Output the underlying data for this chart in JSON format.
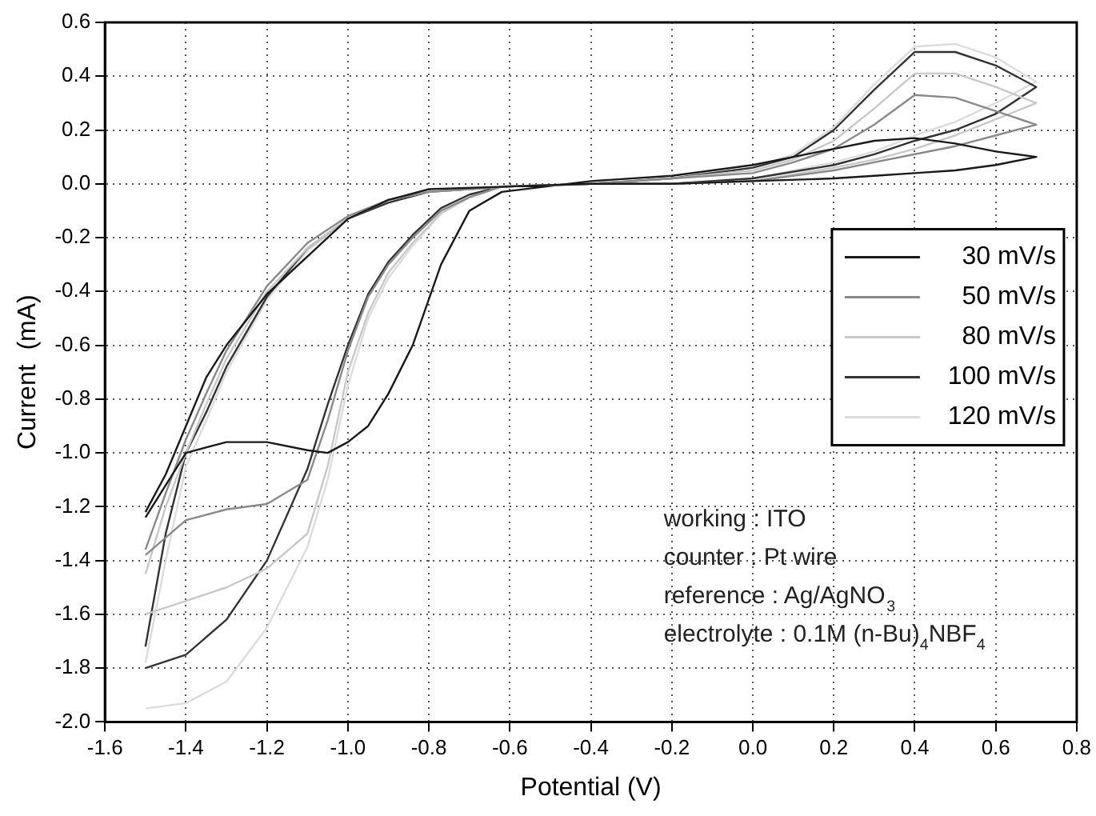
{
  "chart_data": {
    "type": "line",
    "xlabel": "Potential (V)",
    "ylabel": "Current  (mA)",
    "xlim": [
      -1.6,
      0.8
    ],
    "ylim": [
      -2.0,
      0.6
    ],
    "xticks": [
      -1.6,
      -1.4,
      -1.2,
      {
        "value": -1.0,
        "label": "-1.0"
      },
      -0.8,
      -0.6,
      -0.4,
      -0.2,
      {
        "value": 0,
        "label": "0.0"
      },
      0.2,
      0.4,
      0.6,
      0.8
    ],
    "yticks": [
      {
        "value": -2.0,
        "label": "-2.0"
      },
      -1.8,
      -1.6,
      -1.4,
      -1.2,
      {
        "value": -1.0,
        "label": "-1.0"
      },
      -0.8,
      -0.6,
      -0.4,
      -0.2,
      {
        "value": 0,
        "label": "0.0"
      },
      0.2,
      0.4,
      0.6
    ],
    "grid": true,
    "legend": "right",
    "marker": "none",
    "line_style": "solid",
    "annotations": [
      "working : ITO",
      "counter : Pt wire",
      "reference : Ag/AgNO$_{3}$",
      "electrolyte : 0.1M (n-Bu)$_{4}$NBF$_{4}$"
    ],
    "series": [
      {
        "name": "30 mV/s",
        "color": "#1a1a1a",
        "x": [
          -1.5,
          -1.4,
          -1.3,
          -1.2,
          -1.1,
          -1.05,
          -1.0,
          -0.95,
          -0.9,
          -0.84,
          -0.77,
          -0.7,
          -0.62,
          -0.4,
          -0.2,
          0,
          0.1,
          0.2,
          0.3,
          0.4,
          0.5,
          0.6,
          0.7,
          0.6,
          0.5,
          0.4,
          0.3,
          0.2,
          0,
          -0.2,
          -0.4,
          -0.6,
          -0.8,
          -0.9,
          -1.0,
          -1.1,
          -1.2,
          -1.3,
          -1.35,
          -1.4,
          -1.45,
          -1.5
        ],
        "values": [
          -1.24,
          -1.0,
          -0.96,
          -0.96,
          -0.99,
          -1.0,
          -0.96,
          -0.9,
          -0.78,
          -0.6,
          -0.3,
          -0.1,
          -0.03,
          0.01,
          0.03,
          0.07,
          0.1,
          0.13,
          0.16,
          0.17,
          0.15,
          0.12,
          0.1,
          0.07,
          0.05,
          0.04,
          0.03,
          0.02,
          0.01,
          0,
          0,
          -0.01,
          -0.02,
          -0.06,
          -0.13,
          -0.27,
          -0.41,
          -0.6,
          -0.72,
          -0.9,
          -1.08,
          -1.22
        ]
      },
      {
        "name": "50 mV/s",
        "color": "#8a8a8a",
        "x": [
          -1.5,
          -1.4,
          -1.3,
          -1.2,
          -1.1,
          -1.05,
          -1.0,
          -0.95,
          -0.9,
          -0.84,
          -0.77,
          -0.7,
          -0.62,
          -0.4,
          -0.2,
          0,
          0.1,
          0.2,
          0.3,
          0.4,
          0.5,
          0.6,
          0.7,
          0.6,
          0.5,
          0.4,
          0.3,
          0.2,
          0,
          -0.2,
          -0.4,
          -0.6,
          -0.8,
          -0.9,
          -1.0,
          -1.1,
          -1.2,
          -1.3,
          -1.35,
          -1.4,
          -1.45,
          -1.5
        ],
        "values": [
          -1.38,
          -1.25,
          -1.21,
          -1.19,
          -1.1,
          -0.88,
          -0.62,
          -0.42,
          -0.3,
          -0.2,
          -0.1,
          -0.05,
          -0.01,
          0,
          0.02,
          0.04,
          0.08,
          0.13,
          0.22,
          0.33,
          0.32,
          0.27,
          0.22,
          0.18,
          0.14,
          0.11,
          0.08,
          0.05,
          0.01,
          0,
          0,
          -0.01,
          -0.03,
          -0.06,
          -0.12,
          -0.22,
          -0.38,
          -0.62,
          -0.78,
          -0.95,
          -1.15,
          -1.36
        ]
      },
      {
        "name": "80 mV/s",
        "color": "#c8c8c8",
        "x": [
          -1.5,
          -1.4,
          -1.3,
          -1.2,
          -1.1,
          -1.05,
          -1.0,
          -0.95,
          -0.9,
          -0.84,
          -0.77,
          -0.7,
          -0.62,
          -0.4,
          -0.2,
          0,
          0.1,
          0.2,
          0.3,
          0.4,
          0.5,
          0.6,
          0.7,
          0.6,
          0.5,
          0.4,
          0.3,
          0.2,
          0,
          -0.2,
          -0.4,
          -0.6,
          -0.8,
          -0.9,
          -1.0,
          -1.1,
          -1.2,
          -1.3,
          -1.35,
          -1.4,
          -1.45,
          -1.5
        ],
        "values": [
          -1.6,
          -1.55,
          -1.5,
          -1.43,
          -1.3,
          -1.05,
          -0.7,
          -0.48,
          -0.33,
          -0.22,
          -0.11,
          -0.05,
          -0.01,
          0,
          0.02,
          0.05,
          0.09,
          0.16,
          0.28,
          0.41,
          0.41,
          0.36,
          0.3,
          0.24,
          0.18,
          0.13,
          0.09,
          0.06,
          0.01,
          0,
          0,
          -0.01,
          -0.03,
          -0.06,
          -0.13,
          -0.24,
          -0.4,
          -0.65,
          -0.82,
          -1.0,
          -1.2,
          -1.45
        ]
      },
      {
        "name": "100 mV/s",
        "color": "#333333",
        "x": [
          -1.5,
          -1.4,
          -1.3,
          -1.2,
          -1.1,
          -1.05,
          -1.0,
          -0.95,
          -0.9,
          -0.84,
          -0.77,
          -0.7,
          -0.62,
          -0.4,
          -0.2,
          0,
          0.1,
          0.2,
          0.3,
          0.4,
          0.5,
          0.6,
          0.7,
          0.6,
          0.5,
          0.4,
          0.3,
          0.2,
          0,
          -0.2,
          -0.4,
          -0.6,
          -0.8,
          -0.9,
          -1.0,
          -1.1,
          -1.2,
          -1.3,
          -1.35,
          -1.4,
          -1.45,
          -1.5
        ],
        "values": [
          -1.8,
          -1.75,
          -1.62,
          -1.4,
          -1.06,
          -0.82,
          -0.6,
          -0.41,
          -0.29,
          -0.19,
          -0.09,
          -0.04,
          -0.01,
          0,
          0.02,
          0.06,
          0.1,
          0.2,
          0.35,
          0.49,
          0.49,
          0.44,
          0.36,
          0.26,
          0.2,
          0.16,
          0.11,
          0.07,
          0.02,
          0,
          0,
          -0.01,
          -0.03,
          -0.07,
          -0.13,
          -0.24,
          -0.42,
          -0.68,
          -0.85,
          -1.0,
          -1.3,
          -1.72
        ]
      },
      {
        "name": "120 mV/s",
        "color": "#dcdcdc",
        "x": [
          -1.5,
          -1.4,
          -1.3,
          -1.2,
          -1.1,
          -1.05,
          -1.0,
          -0.95,
          -0.9,
          -0.84,
          -0.77,
          -0.7,
          -0.62,
          -0.4,
          -0.2,
          0,
          0.1,
          0.2,
          0.3,
          0.4,
          0.5,
          0.6,
          0.7,
          0.6,
          0.5,
          0.4,
          0.3,
          0.2,
          0,
          -0.2,
          -0.4,
          -0.6,
          -0.8,
          -0.9,
          -1.0,
          -1.1,
          -1.2,
          -1.3,
          -1.35,
          -1.4,
          -1.45,
          -1.5
        ],
        "values": [
          -1.95,
          -1.93,
          -1.85,
          -1.65,
          -1.35,
          -1.1,
          -0.75,
          -0.5,
          -0.35,
          -0.23,
          -0.11,
          -0.05,
          -0.01,
          0,
          0.02,
          0.06,
          0.11,
          0.21,
          0.37,
          0.51,
          0.52,
          0.47,
          0.38,
          0.3,
          0.23,
          0.18,
          0.12,
          0.08,
          0.02,
          0,
          0,
          -0.01,
          -0.03,
          -0.06,
          -0.13,
          -0.25,
          -0.43,
          -0.7,
          -0.88,
          -1.05,
          -1.4,
          -1.78
        ]
      }
    ]
  }
}
